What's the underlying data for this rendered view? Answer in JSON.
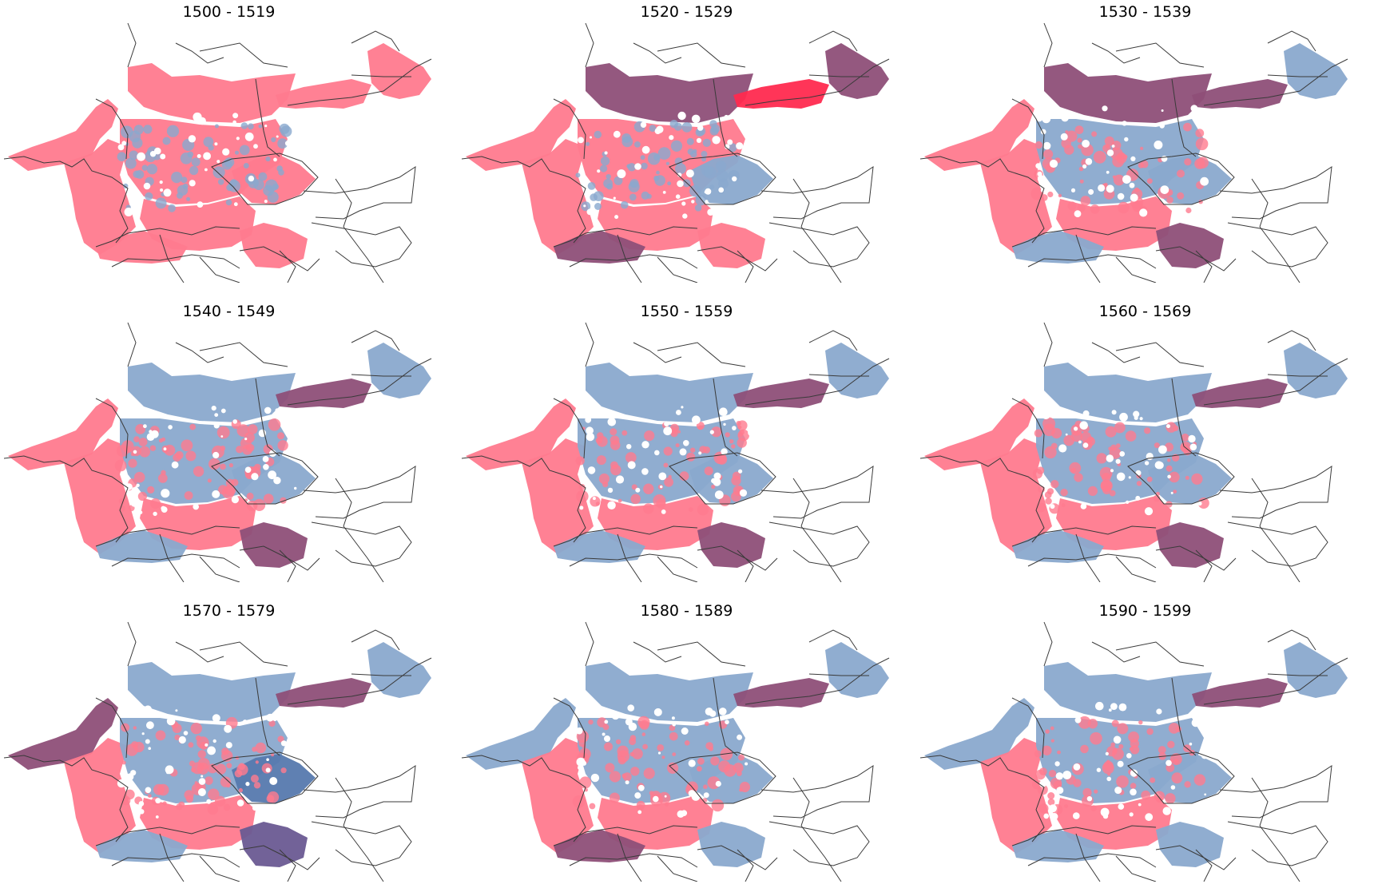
{
  "colors": {
    "catholic": "#ff7a8e",
    "catholic_strong": "#ff2a4f",
    "protestant": "#8aa9ce",
    "protestant_strong": "#5679ae",
    "mixed": "#8e4f78",
    "mixed_blue": "#6a5a92",
    "border": "#3a3a3a",
    "coast": "#777777"
  },
  "panels": [
    {
      "title": "1500 - 1519"
    },
    {
      "title": "1520 - 1529"
    },
    {
      "title": "1530 - 1539"
    },
    {
      "title": "1540 - 1549"
    },
    {
      "title": "1550 - 1559"
    },
    {
      "title": "1560 - 1569"
    },
    {
      "title": "1570 - 1579"
    },
    {
      "title": "1580 - 1589"
    },
    {
      "title": "1590 - 1599"
    }
  ],
  "map_regions": {
    "1500 - 1519": {
      "north": "catholic",
      "west": "catholic",
      "center": "catholic",
      "south": "catholic",
      "bohemia": "catholic",
      "austria": "catholic",
      "prussia": "catholic",
      "baltic": "catholic",
      "netherlands": "catholic",
      "alps": "catholic"
    },
    "1520 - 1529": {
      "north": "mixed",
      "west": "catholic",
      "center": "catholic",
      "south": "catholic",
      "bohemia": "protestant",
      "austria": "catholic",
      "prussia": "catholic_strong",
      "baltic": "mixed",
      "netherlands": "catholic",
      "alps": "mixed"
    },
    "1530 - 1539": {
      "north": "mixed",
      "west": "catholic",
      "center": "protestant",
      "south": "catholic",
      "bohemia": "protestant",
      "austria": "mixed",
      "prussia": "mixed",
      "baltic": "protestant",
      "netherlands": "catholic",
      "alps": "protestant"
    },
    "1540 - 1549": {
      "north": "protestant",
      "west": "catholic",
      "center": "protestant",
      "south": "catholic",
      "bohemia": "protestant",
      "austria": "mixed",
      "prussia": "mixed",
      "baltic": "protestant",
      "netherlands": "catholic",
      "alps": "protestant"
    },
    "1550 - 1559": {
      "north": "protestant",
      "west": "catholic",
      "center": "protestant",
      "south": "catholic",
      "bohemia": "protestant",
      "austria": "mixed",
      "prussia": "mixed",
      "baltic": "protestant",
      "netherlands": "catholic",
      "alps": "protestant"
    },
    "1560 - 1569": {
      "north": "protestant",
      "west": "catholic",
      "center": "protestant",
      "south": "catholic",
      "bohemia": "protestant",
      "austria": "mixed",
      "prussia": "mixed",
      "baltic": "protestant",
      "netherlands": "catholic",
      "alps": "protestant"
    },
    "1570 - 1579": {
      "north": "protestant",
      "west": "catholic",
      "center": "protestant",
      "south": "catholic",
      "bohemia": "protestant_strong",
      "austria": "mixed_blue",
      "prussia": "mixed",
      "baltic": "protestant",
      "netherlands": "mixed",
      "alps": "protestant"
    },
    "1580 - 1589": {
      "north": "protestant",
      "west": "catholic",
      "center": "protestant",
      "south": "catholic",
      "bohemia": "protestant",
      "austria": "protestant",
      "prussia": "mixed",
      "baltic": "protestant",
      "netherlands": "protestant",
      "alps": "mixed"
    },
    "1590 - 1599": {
      "north": "protestant",
      "west": "catholic",
      "center": "protestant",
      "south": "catholic",
      "bohemia": "protestant",
      "austria": "protestant",
      "prussia": "mixed",
      "baltic": "protestant",
      "netherlands": "protestant",
      "alps": "protestant"
    }
  }
}
